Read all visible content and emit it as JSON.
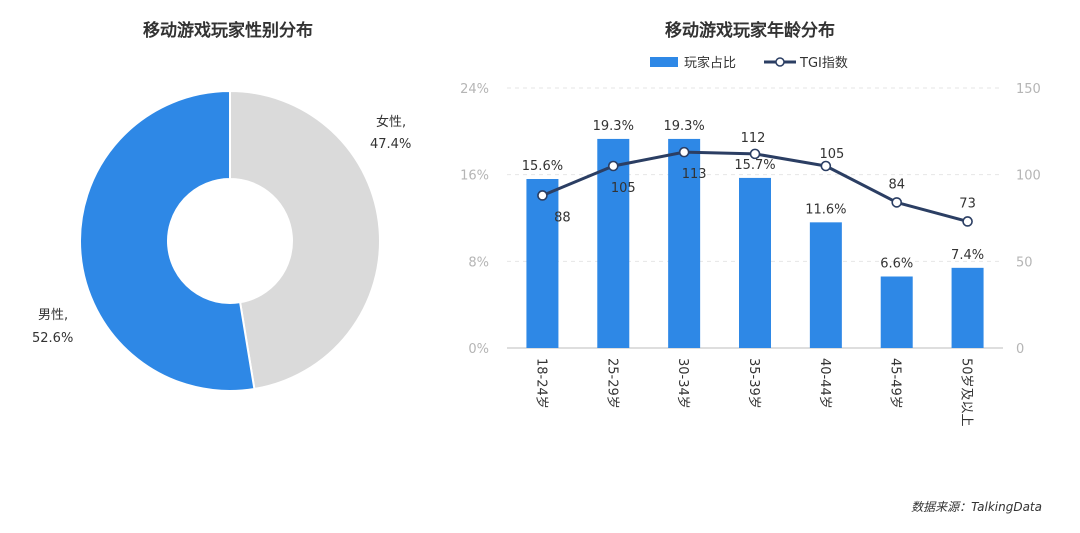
{
  "chart_data": [
    {
      "type": "pie",
      "title": "移动游戏玩家性别分布",
      "donut": true,
      "slices": [
        {
          "label": "男性,",
          "value": 52.6,
          "value_label": "52.6%",
          "color": "#2e88e6"
        },
        {
          "label": "女性,",
          "value": 47.4,
          "value_label": "47.4%",
          "color": "#dadada"
        }
      ]
    },
    {
      "type": "bar",
      "title": "移动游戏玩家年龄分布",
      "categories": [
        "18-24岁",
        "25-29岁",
        "30-34岁",
        "35-39岁",
        "40-44岁",
        "45-49岁",
        "50岁及以上"
      ],
      "series": [
        {
          "name": "玩家占比",
          "type": "bar",
          "axis": "left",
          "color": "#2e88e6",
          "values": [
            15.6,
            19.3,
            19.3,
            15.7,
            11.6,
            6.6,
            7.4
          ],
          "labels": [
            "15.6%",
            "19.3%",
            "19.3%",
            "15.7%",
            "11.6%",
            "6.6%",
            "7.4%"
          ]
        },
        {
          "name": "TGI指数",
          "type": "line",
          "axis": "right",
          "color": "#2b3e63",
          "values": [
            88,
            105,
            113,
            112,
            105,
            84,
            73
          ],
          "labels": [
            "88",
            "105",
            "113",
            "112",
            "105",
            "84",
            "73"
          ]
        }
      ],
      "y_left": {
        "ylim": [
          0,
          24
        ],
        "ticks": [
          "0%",
          "8%",
          "16%",
          "24%"
        ]
      },
      "y_right": {
        "ylim": [
          0,
          150
        ],
        "ticks": [
          "0",
          "50",
          "100",
          "150"
        ]
      },
      "legend_position": "top",
      "grid": true
    }
  ],
  "source": "数据来源：TalkingData"
}
